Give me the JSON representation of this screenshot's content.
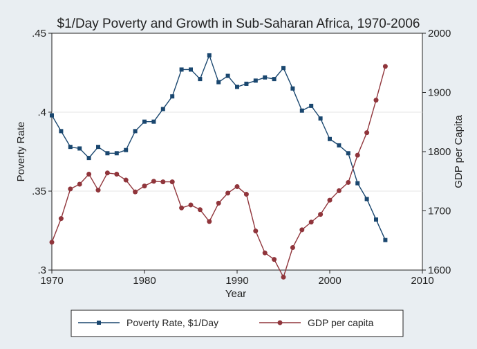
{
  "chart_data": {
    "type": "line",
    "title": "$1/Day Poverty and Growth in Sub-Saharan Africa, 1970-2006",
    "xlabel": "Year",
    "ylabel_left": "Poverty Rate",
    "ylabel_right": "GDP per Capita",
    "xlim": [
      1970,
      2010
    ],
    "ylim_left": [
      0.3,
      0.45
    ],
    "ylim_right": [
      1600,
      2000
    ],
    "xticks": [
      "1970",
      "1980",
      "1990",
      "2000",
      "2010"
    ],
    "yticks_left": [
      ".3",
      ".35",
      ".4",
      ".45"
    ],
    "yticks_right": [
      "1600",
      "1700",
      "1800",
      "1900",
      "2000"
    ],
    "grid": true,
    "legend_position": "bottom",
    "x": [
      1970,
      1971,
      1972,
      1973,
      1974,
      1975,
      1976,
      1977,
      1978,
      1979,
      1980,
      1981,
      1982,
      1983,
      1984,
      1985,
      1986,
      1987,
      1988,
      1989,
      1990,
      1991,
      1992,
      1993,
      1994,
      1995,
      1996,
      1997,
      1998,
      1999,
      2000,
      2001,
      2002,
      2003,
      2004,
      2005,
      2006
    ],
    "series": [
      {
        "name": "Poverty Rate, $1/Day",
        "axis": "left",
        "color": "#1a476f",
        "values": [
          0.398,
          0.388,
          0.378,
          0.377,
          0.371,
          0.378,
          0.374,
          0.374,
          0.376,
          0.388,
          0.394,
          0.394,
          0.402,
          0.41,
          0.427,
          0.427,
          0.421,
          0.436,
          0.419,
          0.423,
          0.416,
          0.418,
          0.42,
          0.422,
          0.421,
          0.428,
          0.415,
          0.401,
          0.404,
          0.396,
          0.383,
          0.379,
          0.374,
          0.355,
          0.345,
          0.332,
          0.319
        ]
      },
      {
        "name": "GDP per capita",
        "axis": "right",
        "color": "#90353b",
        "values": [
          1647,
          1687,
          1737,
          1745,
          1762,
          1735,
          1764,
          1762,
          1752,
          1732,
          1742,
          1750,
          1749,
          1749,
          1705,
          1710,
          1702,
          1682,
          1713,
          1730,
          1741,
          1728,
          1666,
          1629,
          1618,
          1588,
          1638,
          1668,
          1681,
          1694,
          1718,
          1734,
          1748,
          1794,
          1832,
          1887,
          1944
        ]
      }
    ]
  }
}
